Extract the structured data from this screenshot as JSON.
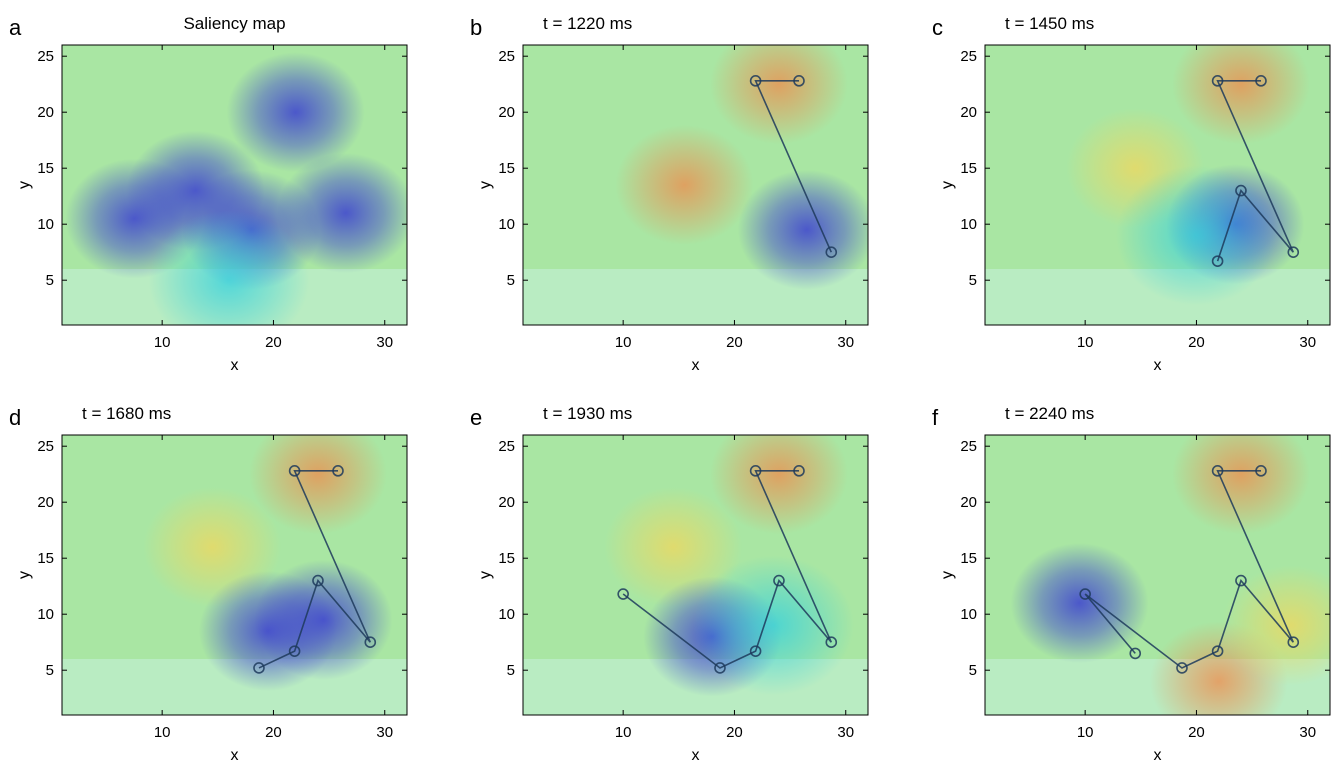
{
  "chart_data": [
    {
      "type": "heatmap",
      "panel_label": "a",
      "title": "Saliency map",
      "xlabel": "x",
      "ylabel": "y",
      "xlim": [
        1,
        32
      ],
      "ylim": [
        1,
        26
      ],
      "xticks": [
        10,
        20,
        30
      ],
      "yticks": [
        5,
        10,
        15,
        20,
        25
      ],
      "grid": false,
      "blobs": [
        {
          "x": 7.5,
          "y": 10.5,
          "level": "low"
        },
        {
          "x": 18,
          "y": 9.5,
          "level": "low"
        },
        {
          "x": 26.5,
          "y": 11,
          "level": "low"
        },
        {
          "x": 13,
          "y": 13,
          "level": "low"
        },
        {
          "x": 22,
          "y": 20,
          "level": "low"
        },
        {
          "x": 16,
          "y": 5,
          "level": "mid-low"
        }
      ],
      "scanpath": []
    },
    {
      "type": "scatter",
      "panel_label": "b",
      "title": "t = 1220 ms",
      "xlabel": "x",
      "ylabel": "y",
      "xlim": [
        1,
        32
      ],
      "ylim": [
        1,
        26
      ],
      "xticks": [
        10,
        20,
        30
      ],
      "yticks": [
        5,
        10,
        15,
        20,
        25
      ],
      "grid": false,
      "blobs": [
        {
          "x": 15.5,
          "y": 13.5,
          "level": "high"
        },
        {
          "x": 24,
          "y": 22.5,
          "level": "high"
        },
        {
          "x": 26.5,
          "y": 9.5,
          "level": "low"
        }
      ],
      "scanpath": [
        {
          "x": 25.8,
          "y": 22.8
        },
        {
          "x": 21.9,
          "y": 22.8
        },
        {
          "x": 28.7,
          "y": 7.5
        }
      ]
    },
    {
      "type": "scatter",
      "panel_label": "c",
      "title": "t = 1450 ms",
      "xlabel": "x",
      "ylabel": "y",
      "xlim": [
        1,
        32
      ],
      "ylim": [
        1,
        26
      ],
      "xticks": [
        10,
        20,
        30
      ],
      "yticks": [
        5,
        10,
        15,
        20,
        25
      ],
      "grid": false,
      "blobs": [
        {
          "x": 14.5,
          "y": 15,
          "level": "mid-high"
        },
        {
          "x": 24,
          "y": 22.5,
          "level": "high"
        },
        {
          "x": 23.5,
          "y": 10,
          "level": "low"
        },
        {
          "x": 20,
          "y": 9,
          "level": "mid-low"
        }
      ],
      "scanpath": [
        {
          "x": 25.8,
          "y": 22.8
        },
        {
          "x": 21.9,
          "y": 22.8
        },
        {
          "x": 28.7,
          "y": 7.5
        },
        {
          "x": 24.0,
          "y": 13.0
        },
        {
          "x": 21.9,
          "y": 6.7
        }
      ]
    },
    {
      "type": "scatter",
      "panel_label": "d",
      "title": "t = 1680 ms",
      "xlabel": "x",
      "ylabel": "y",
      "xlim": [
        1,
        32
      ],
      "ylim": [
        1,
        26
      ],
      "xticks": [
        10,
        20,
        30
      ],
      "yticks": [
        5,
        10,
        15,
        20,
        25
      ],
      "grid": false,
      "blobs": [
        {
          "x": 14.5,
          "y": 16,
          "level": "mid-high"
        },
        {
          "x": 24,
          "y": 22.5,
          "level": "high"
        },
        {
          "x": 19.5,
          "y": 8.5,
          "level": "low"
        },
        {
          "x": 24.5,
          "y": 9.5,
          "level": "low"
        }
      ],
      "scanpath": [
        {
          "x": 25.8,
          "y": 22.8
        },
        {
          "x": 21.9,
          "y": 22.8
        },
        {
          "x": 28.7,
          "y": 7.5
        },
        {
          "x": 24.0,
          "y": 13.0
        },
        {
          "x": 21.9,
          "y": 6.7
        },
        {
          "x": 18.7,
          "y": 5.2
        }
      ]
    },
    {
      "type": "scatter",
      "panel_label": "e",
      "title": "t = 1930 ms",
      "xlabel": "x",
      "ylabel": "y",
      "xlim": [
        1,
        32
      ],
      "ylim": [
        1,
        26
      ],
      "xticks": [
        10,
        20,
        30
      ],
      "yticks": [
        5,
        10,
        15,
        20,
        25
      ],
      "grid": false,
      "blobs": [
        {
          "x": 14.5,
          "y": 16,
          "level": "mid-high"
        },
        {
          "x": 24,
          "y": 22.5,
          "level": "high"
        },
        {
          "x": 18,
          "y": 8,
          "level": "low"
        },
        {
          "x": 23.5,
          "y": 9,
          "level": "mid-low"
        }
      ],
      "scanpath": [
        {
          "x": 25.8,
          "y": 22.8
        },
        {
          "x": 21.9,
          "y": 22.8
        },
        {
          "x": 28.7,
          "y": 7.5
        },
        {
          "x": 24.0,
          "y": 13.0
        },
        {
          "x": 21.9,
          "y": 6.7
        },
        {
          "x": 18.7,
          "y": 5.2
        },
        {
          "x": 10.0,
          "y": 11.8
        }
      ]
    },
    {
      "type": "scatter",
      "panel_label": "f",
      "title": "t = 2240 ms",
      "xlabel": "x",
      "ylabel": "y",
      "xlim": [
        1,
        32
      ],
      "ylim": [
        1,
        26
      ],
      "xticks": [
        10,
        20,
        30
      ],
      "yticks": [
        5,
        10,
        15,
        20,
        25
      ],
      "grid": false,
      "blobs": [
        {
          "x": 9.5,
          "y": 11,
          "level": "low"
        },
        {
          "x": 24,
          "y": 22.5,
          "level": "high"
        },
        {
          "x": 22,
          "y": 4,
          "level": "high"
        },
        {
          "x": 28.5,
          "y": 9,
          "level": "mid-high"
        }
      ],
      "scanpath": [
        {
          "x": 25.8,
          "y": 22.8
        },
        {
          "x": 21.9,
          "y": 22.8
        },
        {
          "x": 28.7,
          "y": 7.5
        },
        {
          "x": 24.0,
          "y": 13.0
        },
        {
          "x": 21.9,
          "y": 6.7
        },
        {
          "x": 18.7,
          "y": 5.2
        },
        {
          "x": 10.0,
          "y": 11.8
        },
        {
          "x": 14.5,
          "y": 6.5
        }
      ]
    }
  ],
  "colors": {
    "background": "#a9e6a3",
    "low": "#3b3fd1",
    "mid-low": "#2fd0e0",
    "mid-high": "#f2d75c",
    "high": "#f08a4b",
    "scanpath": "#1d3a5c"
  }
}
